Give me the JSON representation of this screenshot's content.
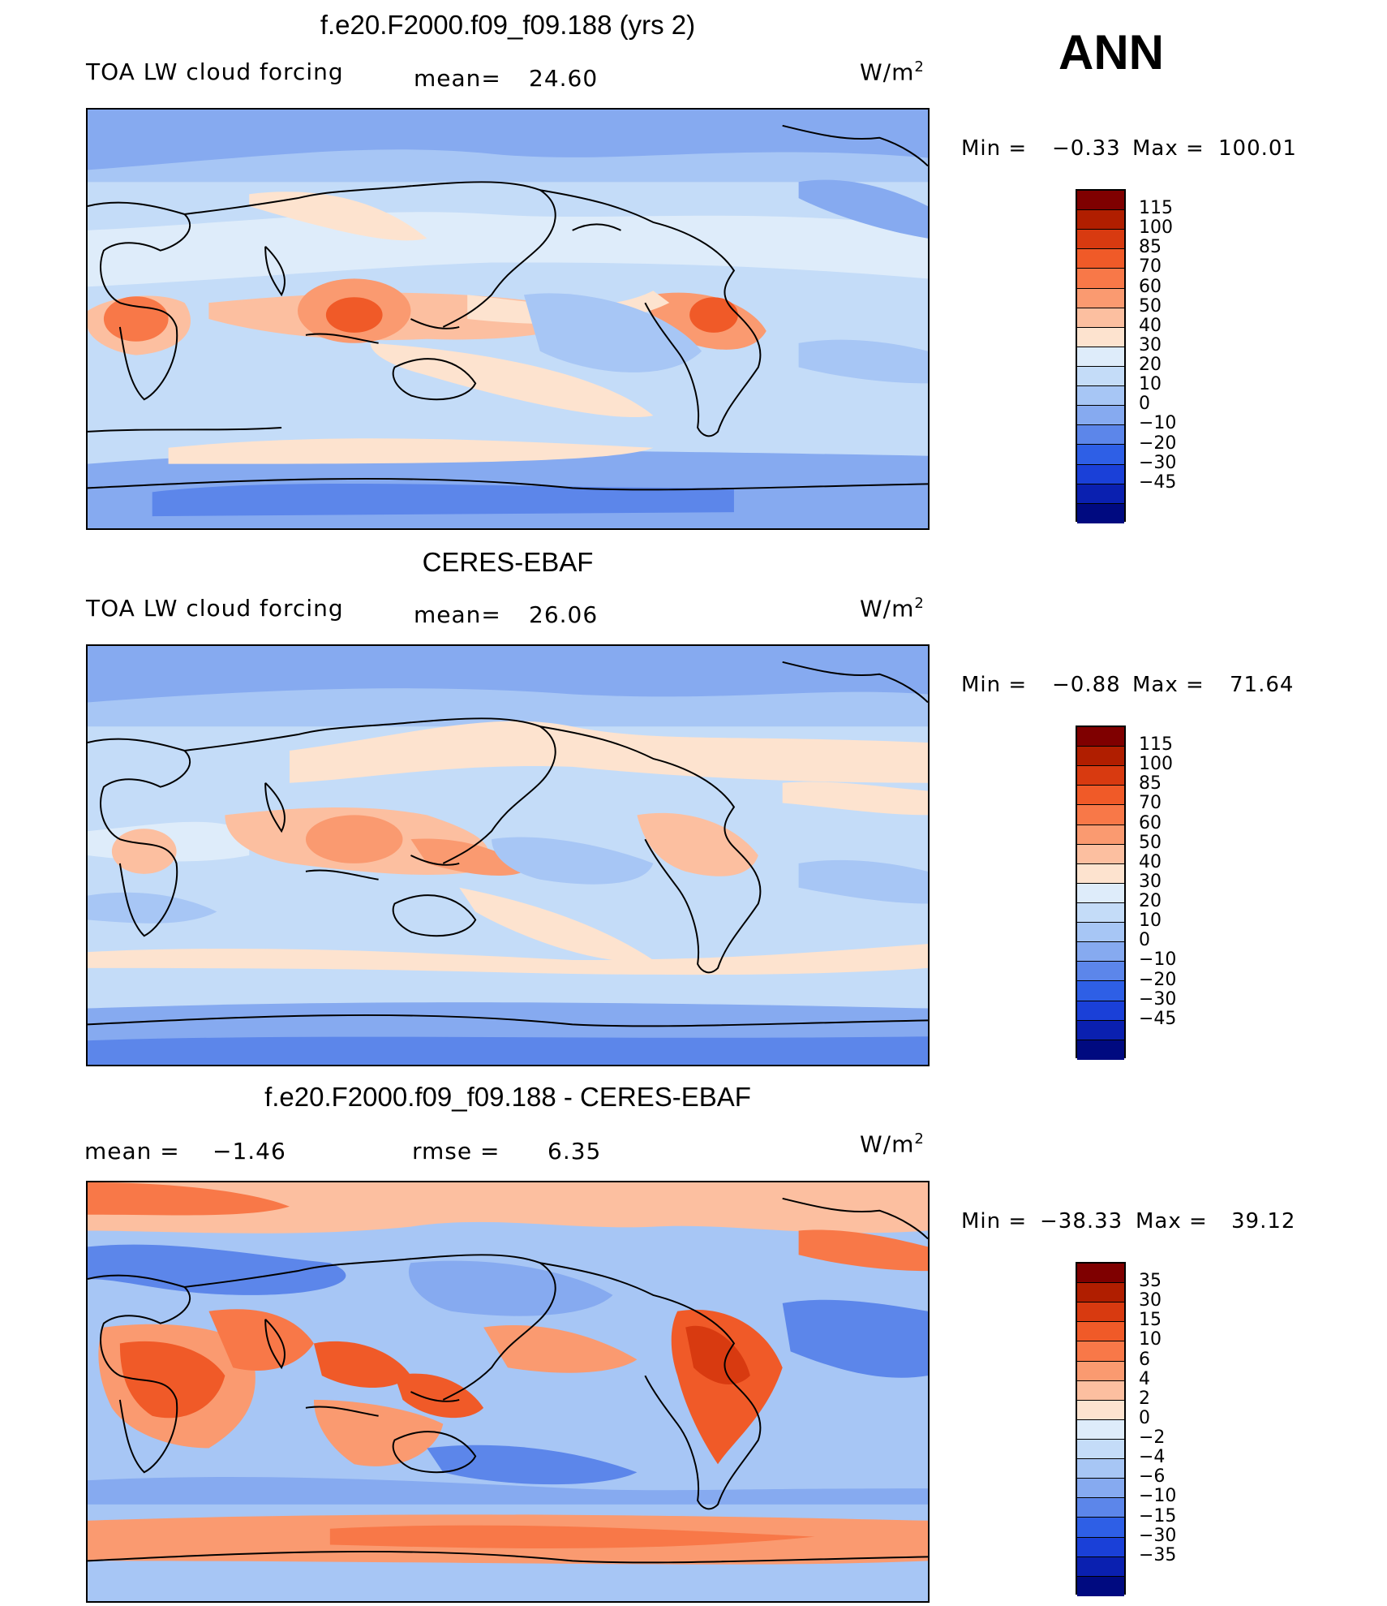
{
  "header": {
    "season": "ANN"
  },
  "panels": [
    {
      "id": "model",
      "title": "f.e20.F2000.f09_f09.188 (yrs 2)",
      "variable": "TOA LW cloud forcing",
      "mean_label": "mean=",
      "mean_value": "24.60",
      "units": "W/m",
      "units_sup": "2",
      "min_label": "Min =",
      "min_value": "−0.33",
      "max_label": "Max =",
      "max_value": "100.01"
    },
    {
      "id": "obs",
      "title": "CERES-EBAF",
      "variable": "TOA LW cloud forcing",
      "mean_label": "mean=",
      "mean_value": "26.06",
      "units": "W/m",
      "units_sup": "2",
      "min_label": "Min =",
      "min_value": "−0.88",
      "max_label": "Max =",
      "max_value": "71.64"
    },
    {
      "id": "diff",
      "title": "f.e20.F2000.f09_f09.188 - CERES-EBAF",
      "mean_label": "mean =",
      "mean_value": "−1.46",
      "rmse_label": "rmse =",
      "rmse_value": "6.35",
      "units": "W/m",
      "units_sup": "2",
      "min_label": "Min =",
      "min_value": "−38.33",
      "max_label": "Max =",
      "max_value": "39.12"
    }
  ],
  "colorbars": {
    "field": {
      "labels": [
        "115",
        "100",
        "85",
        "70",
        "60",
        "50",
        "40",
        "30",
        "20",
        "10",
        "0",
        "−10",
        "−20",
        "−30",
        "−45"
      ],
      "colors": [
        "#7f0000",
        "#b01e00",
        "#d83a10",
        "#f05a28",
        "#f87848",
        "#fa9a70",
        "#fcbfa0",
        "#fde3cf",
        "#deecfa",
        "#c4dcf8",
        "#a7c6f5",
        "#86aaf0",
        "#5c86ea",
        "#2e5fe6",
        "#1a40d8",
        "#0a20b0",
        "#000a80"
      ]
    },
    "diff": {
      "labels": [
        "35",
        "30",
        "15",
        "10",
        "6",
        "4",
        "2",
        "0",
        "−2",
        "−4",
        "−6",
        "−10",
        "−15",
        "−30",
        "−35"
      ],
      "colors": [
        "#7f0000",
        "#b01e00",
        "#d83a10",
        "#f05a28",
        "#f87848",
        "#fa9a70",
        "#fcbfa0",
        "#fde3cf",
        "#deecfa",
        "#c4dcf8",
        "#a7c6f5",
        "#86aaf0",
        "#5c86ea",
        "#2e5fe6",
        "#1a40d8",
        "#0a20b0",
        "#000a80"
      ]
    }
  }
}
